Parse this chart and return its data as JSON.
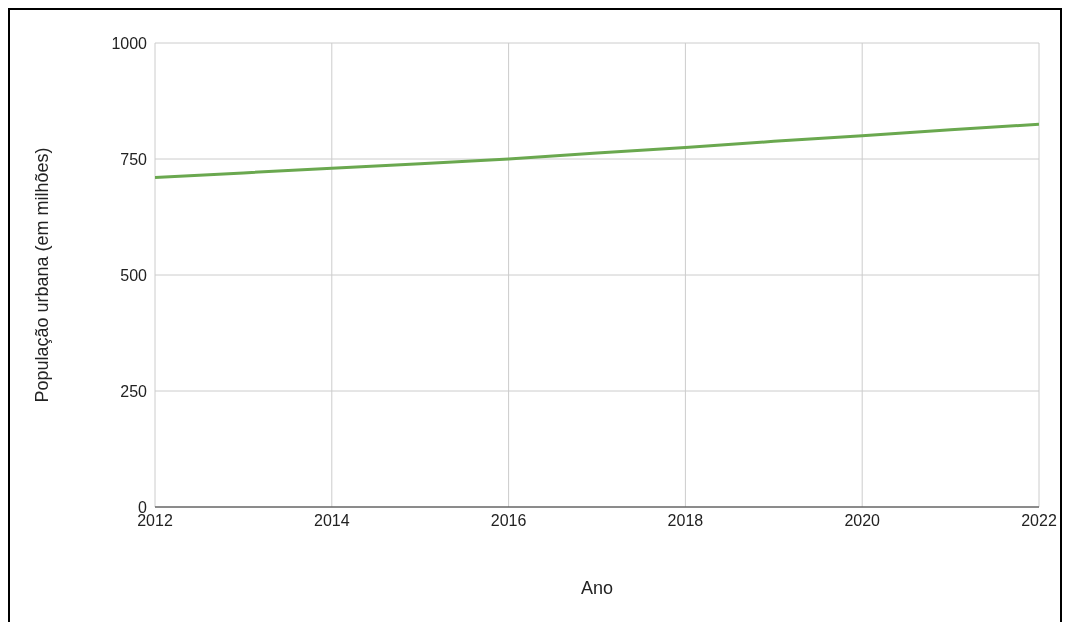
{
  "chart_data": {
    "type": "line",
    "xlabel": "Ano",
    "ylabel": "População urbana (em milhões)",
    "x": [
      2012,
      2013,
      2014,
      2015,
      2016,
      2017,
      2018,
      2019,
      2020,
      2021,
      2022
    ],
    "series": [
      {
        "color": "#6aa84f",
        "values": [
          710,
          720,
          730,
          740,
          750,
          763,
          775,
          788,
          800,
          813,
          825
        ]
      }
    ],
    "xlim": [
      2012,
      2022
    ],
    "xticks": [
      2012,
      2014,
      2016,
      2018,
      2020,
      2022
    ],
    "ylim": [
      0,
      1000
    ],
    "yticks": [
      0,
      250,
      500,
      750,
      1000
    ],
    "grid": true,
    "legend": false,
    "marker": "none",
    "line_style": "solid"
  }
}
